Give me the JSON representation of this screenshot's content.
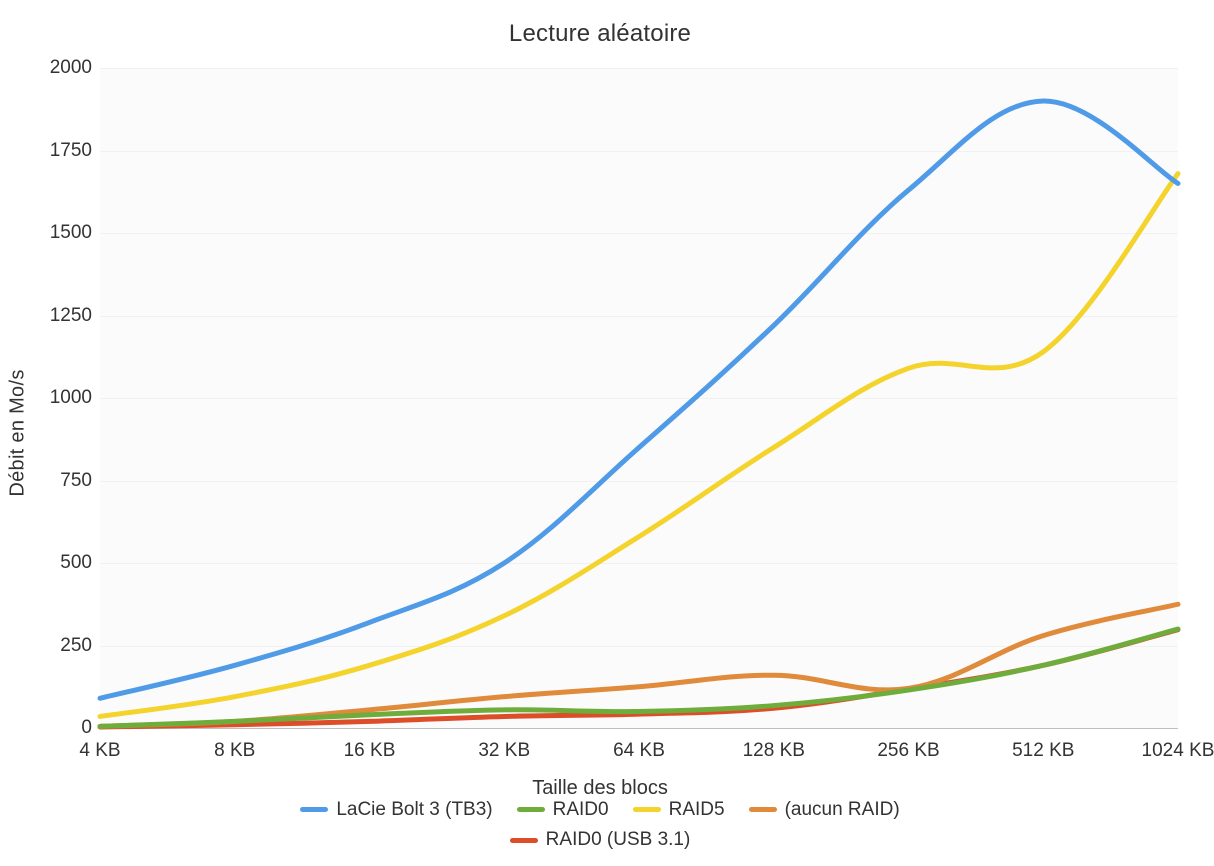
{
  "chart": {
    "type": "line",
    "title": "Lecture aléatoire",
    "title_fontsize": 24,
    "x_axis_label": "Taille des blocs",
    "y_axis_label": "Débit en Mo/s",
    "label_fontsize": 20,
    "tick_fontsize": 19,
    "background_color": "#ffffff",
    "plot_background_color": "#fcfbfb",
    "grid_color": "#f2f1f1",
    "baseline_color": "#bfbfbf",
    "line_width": 5,
    "font_family": "Helvetica Neue",
    "categories": [
      "4 KB",
      "8 KB",
      "16 KB",
      "32 KB",
      "64 KB",
      "128 KB",
      "256 KB",
      "512 KB",
      "1024 KB"
    ],
    "ylim": [
      0,
      2000
    ],
    "y_ticks": [
      0,
      250,
      500,
      750,
      1000,
      1250,
      1500,
      1750,
      2000
    ],
    "series": [
      {
        "name": "LaCie Bolt 3 (TB3)",
        "color": "#4f9be8",
        "values": [
          90,
          190,
          320,
          500,
          850,
          1220,
          1630,
          1900,
          1650
        ]
      },
      {
        "name": "RAID0",
        "color": "#6ead3b",
        "values": [
          5,
          20,
          40,
          55,
          50,
          68,
          115,
          190,
          300
        ]
      },
      {
        "name": "RAID5",
        "color": "#f3d32c",
        "values": [
          35,
          95,
          190,
          340,
          580,
          850,
          1090,
          1140,
          1680
        ]
      },
      {
        "name": "(aucun RAID)",
        "color": "#e08a3b",
        "values": [
          5,
          20,
          55,
          95,
          125,
          160,
          120,
          280,
          375
        ]
      },
      {
        "name": "RAID0 (USB 3.1)",
        "color": "#dd4d29",
        "values": [
          3,
          10,
          20,
          35,
          42,
          60,
          118,
          190,
          298
        ]
      }
    ],
    "legend_layout": [
      [
        "LaCie Bolt 3 (TB3)",
        "RAID0",
        "RAID5",
        "(aucun RAID)"
      ],
      [
        "RAID0 (USB 3.1)"
      ]
    ]
  }
}
